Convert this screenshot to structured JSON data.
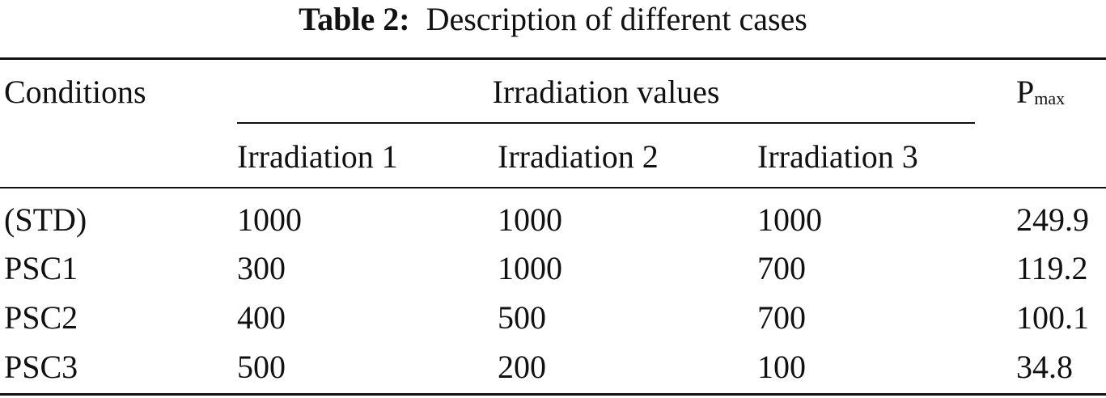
{
  "caption": {
    "label": "Table 2:",
    "text": "Description of different cases"
  },
  "table": {
    "header": {
      "conditions": "Conditions",
      "group": "Irradiation values",
      "pmax": {
        "text": "P",
        "subscript": "max"
      },
      "subheaders": [
        "Irradiation 1",
        "Irradiation 2",
        "Irradiation 3"
      ]
    },
    "rows": [
      [
        "(STD)",
        1000,
        1000,
        1000,
        249.9
      ],
      [
        "PSC1",
        300,
        1000,
        700,
        119.2
      ],
      [
        "PSC2",
        400,
        500,
        700,
        100.1
      ],
      [
        "PSC3",
        500,
        200,
        100,
        34.8
      ]
    ]
  }
}
